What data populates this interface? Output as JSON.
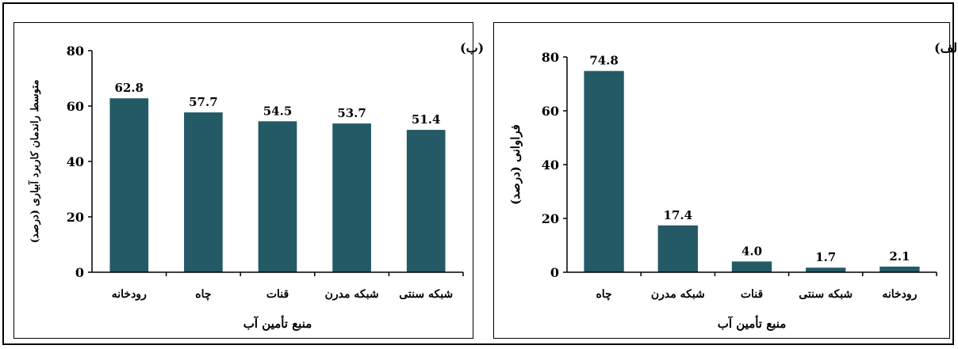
{
  "chart_data": [
    {
      "type": "bar",
      "panel_label": "(ب)",
      "categories": [
        "رودخانه",
        "چاه",
        "قنات",
        "شبکه مدرن",
        "شبکه سنتی"
      ],
      "values": [
        62.8,
        57.7,
        54.5,
        53.7,
        51.4
      ],
      "value_labels": [
        "62.8",
        "57.7",
        "54.5",
        "53.7",
        "51.4"
      ],
      "xlabel": "منبع تأمین آب",
      "ylabel": "متوسط راندمان کاربرد آبیاری (درصد)",
      "ylim": [
        0,
        80
      ],
      "yticks": [
        0,
        20,
        40,
        60,
        80
      ],
      "grid": false,
      "bar_color": "#235a66"
    },
    {
      "type": "bar",
      "panel_label": "(الف)",
      "categories": [
        "چاه",
        "شبکه مدرن",
        "قنات",
        "شبکه سنتی",
        "رودخانه"
      ],
      "values": [
        74.8,
        17.4,
        4.0,
        1.7,
        2.1
      ],
      "value_labels": [
        "74.8",
        "17.4",
        "4.0",
        "1.7",
        "2.1"
      ],
      "xlabel": "منبع تأمین آب",
      "ylabel": "فراوانی (درصد)",
      "ylim": [
        0,
        80
      ],
      "yticks": [
        0,
        20,
        40,
        60,
        80
      ],
      "grid": false,
      "bar_color": "#235a66"
    }
  ]
}
